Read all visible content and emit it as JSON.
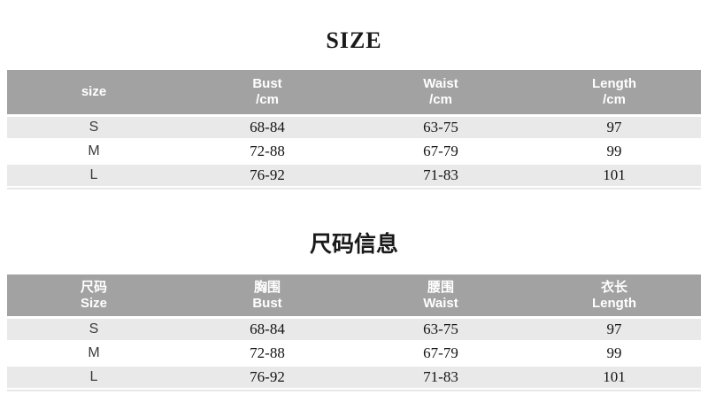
{
  "colors": {
    "page_bg": "#ffffff",
    "header_bg": "#a2a2a2",
    "header_text": "#ffffff",
    "row_bg": "#ffffff",
    "row_alt_bg": "#e9e9e9",
    "body_text": "#141414",
    "size_col_text": "#3c3c3c",
    "title_text": "#1a1a1a",
    "divider": "#e8e8e8"
  },
  "table_en": {
    "title": "SIZE",
    "columns": [
      {
        "line1": "size",
        "line2": ""
      },
      {
        "line1": "Bust",
        "line2": "/cm"
      },
      {
        "line1": "Waist",
        "line2": "/cm"
      },
      {
        "line1": "Length",
        "line2": "/cm"
      }
    ],
    "rows": [
      {
        "size": "S",
        "bust": "68-84",
        "waist": "63-75",
        "length": "97"
      },
      {
        "size": "M",
        "bust": "72-88",
        "waist": "67-79",
        "length": "99"
      },
      {
        "size": "L",
        "bust": "76-92",
        "waist": "71-83",
        "length": "101"
      }
    ]
  },
  "table_cn": {
    "title": "尺码信息",
    "columns": [
      {
        "line1": "尺码",
        "line2": "Size"
      },
      {
        "line1": "胸围",
        "line2": "Bust"
      },
      {
        "line1": "腰围",
        "line2": "Waist"
      },
      {
        "line1": "衣长",
        "line2": "Length"
      }
    ],
    "rows": [
      {
        "size": "S",
        "bust": "68-84",
        "waist": "63-75",
        "length": "97"
      },
      {
        "size": "M",
        "bust": "72-88",
        "waist": "67-79",
        "length": "99"
      },
      {
        "size": "L",
        "bust": "76-92",
        "waist": "71-83",
        "length": "101"
      }
    ]
  }
}
